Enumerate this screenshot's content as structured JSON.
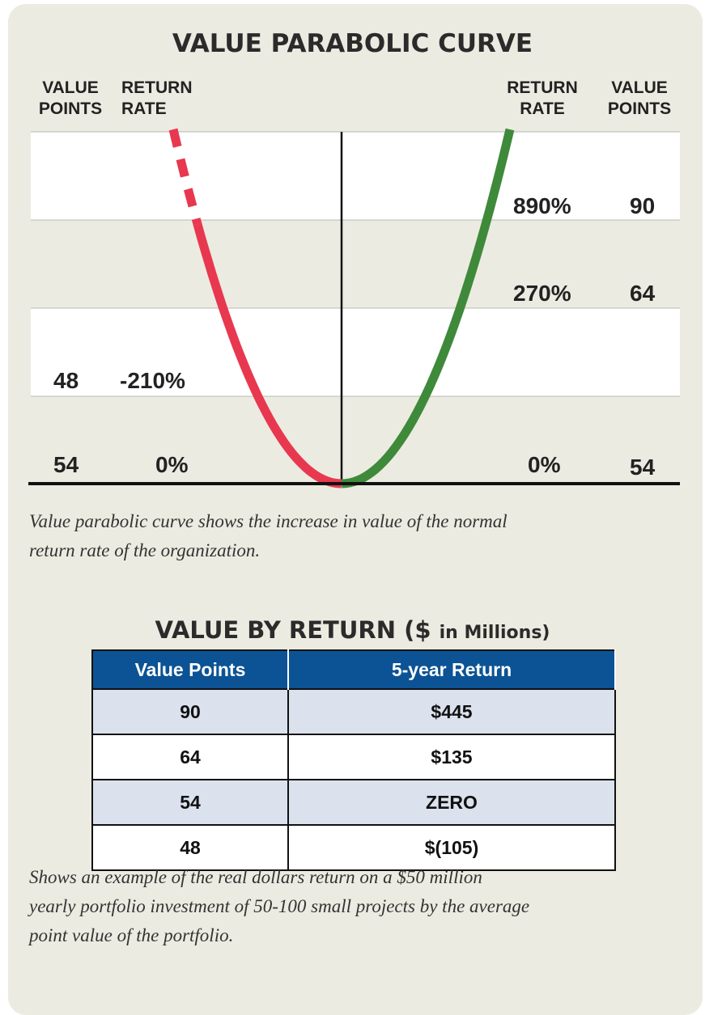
{
  "chart": {
    "title": "VALUE PARABOLIC CURVE",
    "left_headers": {
      "points": [
        "VALUE",
        "POINTS"
      ],
      "rate": [
        "RETURN",
        "RATE"
      ]
    },
    "right_headers": {
      "rate": [
        "RETURN",
        "RATE"
      ],
      "points": [
        "VALUE",
        "POINTS"
      ]
    },
    "right_labels": [
      {
        "rate": "890%",
        "points": "90"
      },
      {
        "rate": "270%",
        "points": "64"
      },
      {
        "rate": "0%",
        "points": "54"
      }
    ],
    "left_labels": [
      {
        "points": "48",
        "rate": "-210%"
      },
      {
        "points": "54",
        "rate": "0%"
      }
    ],
    "caption": [
      "Value parabolic curve shows the increase in value of the normal",
      "return rate of the organization."
    ]
  },
  "table": {
    "title": "VALUE BY RETURN ($",
    "title_unit": "in Millions)",
    "header": [
      "Value Points",
      "5-year Return"
    ],
    "rows": [
      [
        "90",
        "$445"
      ],
      [
        "64",
        "$135"
      ],
      [
        "54",
        "ZERO"
      ],
      [
        "48",
        "$(105)"
      ]
    ],
    "caption": [
      "Shows an example of the real dollars return on a $50 million",
      "yearly portfolio investment of 50-100 small projects by the average",
      "point value of the portfolio."
    ]
  }
}
